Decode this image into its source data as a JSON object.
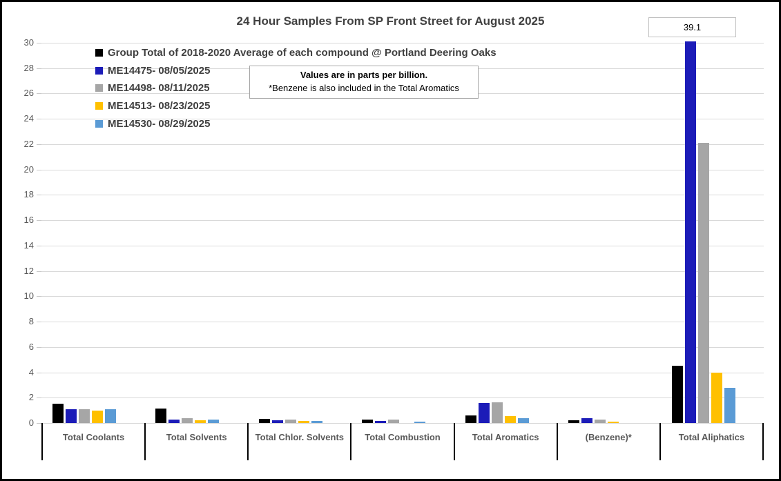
{
  "chart_data": {
    "type": "bar",
    "title": "24 Hour Samples From SP Front Street for August 2025",
    "xlabel": "",
    "ylabel": "",
    "values_unit": "parts per billion",
    "ylim": [
      0,
      30
    ],
    "ytick_step": 2,
    "grid": true,
    "legend_position": "top-left-inside",
    "categories": [
      "Total Coolants",
      "Total Solvents",
      "Total Chlor. Solvents",
      "Total Combustion",
      "Total Aromatics",
      "(Benzene)*",
      "Total Aliphatics"
    ],
    "series": [
      {
        "name": "Group Total of 2018-2020 Average of each compound @ Portland Deering Oaks",
        "color": "#000000",
        "values": [
          1.5,
          1.15,
          0.35,
          0.3,
          0.6,
          0.2,
          4.5
        ]
      },
      {
        "name": "ME14475- 08/05/2025",
        "color": "#1C1CB8",
        "values": [
          1.1,
          0.3,
          0.2,
          0.15,
          1.6,
          0.4,
          39.1
        ]
      },
      {
        "name": "ME14498- 08/11/2025",
        "color": "#A6A6A6",
        "values": [
          1.1,
          0.4,
          0.25,
          0.25,
          1.65,
          0.3,
          22.1
        ]
      },
      {
        "name": "ME14513- 08/23/2025",
        "color": "#FFC000",
        "values": [
          1.0,
          0.2,
          0.15,
          0,
          0.55,
          0.1,
          4.0
        ]
      },
      {
        "name": "ME14530- 08/29/2025",
        "color": "#5B9BD5",
        "values": [
          1.1,
          0.3,
          0.15,
          0.1,
          0.4,
          0,
          2.8
        ]
      }
    ],
    "annotation": {
      "value": "39.1",
      "series": "ME14475- 08/05/2025",
      "category": "Total Aliphatics"
    },
    "note_box": {
      "line1": "Values are in parts per billion.",
      "line2": "*Benzene is also included in the Total Aromatics"
    },
    "colors": {
      "gridline": "#D9D9D9",
      "axis_text": "#595959",
      "title_text": "#404040",
      "legend_text": "#404040",
      "category_divider": "#000000",
      "callout_border": "#BFBFBF",
      "note_border": "#A6A6A6"
    }
  }
}
